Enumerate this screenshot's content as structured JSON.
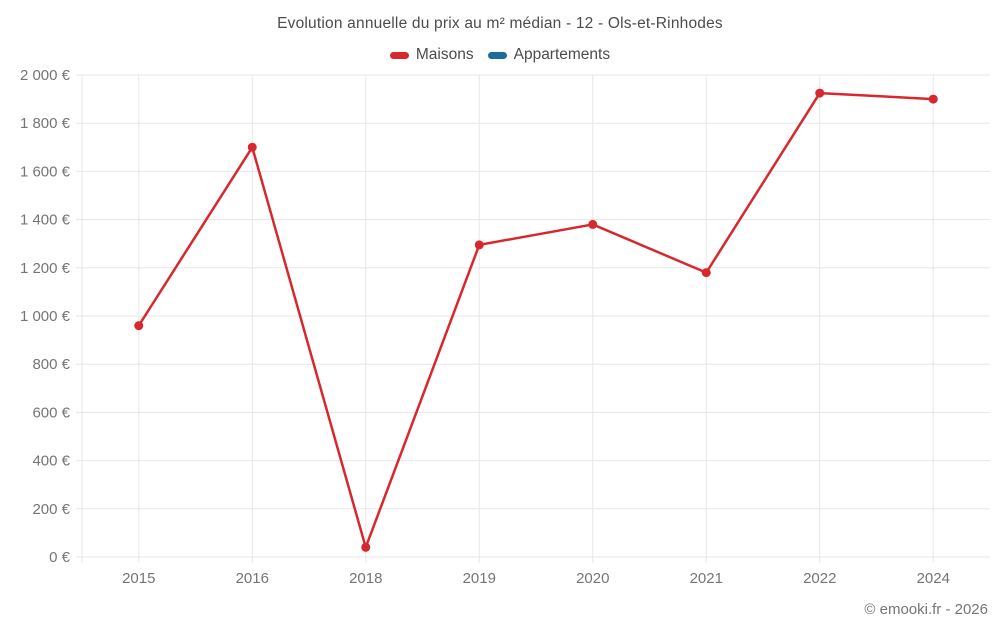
{
  "title": "Evolution annuelle du prix au m² médian - 12 - Ols-et-Rinhodes",
  "legend": [
    {
      "label": "Maisons",
      "color": "#d7282e"
    },
    {
      "label": "Appartements",
      "color": "#1a6d9e"
    }
  ],
  "footer": "© emooki.fr - 2026",
  "colors": {
    "maisons": "#d7282e",
    "appartements": "#1a6d9e",
    "grid": "#e7e7e7",
    "axis_text": "#757575",
    "title_text": "#4c4c4c"
  },
  "chart_data": {
    "type": "line",
    "title": "Evolution annuelle du prix au m² médian - 12 - Ols-et-Rinhodes",
    "categories": [
      "2015",
      "2016",
      "2018",
      "2019",
      "2020",
      "2021",
      "2022",
      "2024"
    ],
    "series": [
      {
        "name": "Maisons",
        "color": "#d7282e",
        "values": [
          960,
          1700,
          40,
          1295,
          1380,
          1180,
          1925,
          1900
        ]
      },
      {
        "name": "Appartements",
        "color": "#1a6d9e",
        "values": []
      }
    ],
    "xlabel": "",
    "ylabel": "",
    "ylim": [
      0,
      2000
    ],
    "y_tick_step": 200,
    "y_tick_labels": [
      "0 €",
      "200 €",
      "400 €",
      "600 €",
      "800 €",
      "1 000 €",
      "1 200 €",
      "1 400 €",
      "1 600 €",
      "1 800 €",
      "2 000 €"
    ],
    "grid": true,
    "legend_position": "top"
  }
}
